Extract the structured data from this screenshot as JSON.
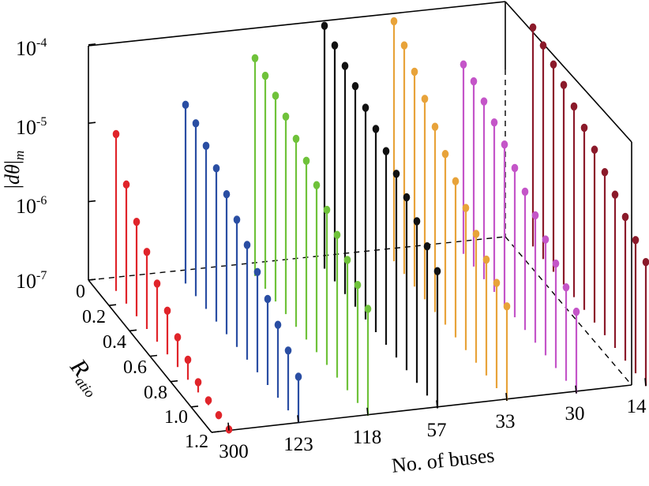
{
  "chart_data": {
    "type": "3d-stem",
    "ylabel": "|dθ|m",
    "ylabel_parts": {
      "open": "|",
      "d": "d",
      "theta": "θ",
      "close": "|",
      "sub": "m"
    },
    "xlabel": "No. of buses",
    "rlabel": "R",
    "rlabel_sub": "atio",
    "z_scale": "log",
    "z_range": [
      1e-07,
      0.0001
    ],
    "z_ticks": [
      {
        "base": "10",
        "exp": "-4",
        "value": 0.0001
      },
      {
        "base": "10",
        "exp": "-5",
        "value": 1e-05
      },
      {
        "base": "10",
        "exp": "-6",
        "value": 1e-06
      },
      {
        "base": "10",
        "exp": "-7",
        "value": 1e-07
      }
    ],
    "r_range": [
      0,
      1.2
    ],
    "r_ticks": [
      "0",
      "0.2",
      "0.4",
      "0.6",
      "0.8",
      "1.0",
      "1.2"
    ],
    "r_values": [
      0.1,
      0.2,
      0.3,
      0.4,
      0.5,
      0.6,
      0.7,
      0.8,
      0.9,
      1.0,
      1.1,
      1.2
    ],
    "series": [
      {
        "name": "300",
        "color": "#e0242a",
        "values": [
          1e-05,
          3.3e-06,
          1.6e-06,
          9.6e-07,
          5.5e-07,
          3.6e-07,
          2.4e-07,
          1.8e-07,
          1.35e-07,
          1.15e-07,
          1.08e-07,
          1.03e-07
        ]
      },
      {
        "name": "123",
        "color": "#2a4ea3",
        "values": [
          1.9e-05,
          1.6e-05,
          1.2e-05,
          9e-06,
          6.1e-06,
          4.2e-06,
          2.9e-06,
          1.9e-06,
          1.25e-06,
          8.5e-07,
          5.8e-07,
          3.9e-07
        ]
      },
      {
        "name": "118",
        "color": "#6fc23a",
        "values": [
          6e-05,
          5.2e-05,
          4.2e-05,
          3.3e-05,
          2.5e-05,
          1.9e-05,
          1.35e-05,
          9.5e-06,
          6.6e-06,
          4.6e-06,
          3.2e-06,
          2.3e-06
        ]
      },
      {
        "name": "57",
        "color": "#111111",
        "values": [
          0.000125,
          0.000102,
          8.1e-05,
          6.5e-05,
          5e-05,
          3.9e-05,
          2.95e-05,
          2.2e-05,
          1.6e-05,
          1.15e-05,
          8e-06,
          5.6e-06
        ]
      },
      {
        "name": "33",
        "color": "#e8a33a",
        "values": [
          0.000115,
          8.2e-05,
          5.5e-05,
          3.6e-05,
          2.3e-05,
          1.5e-05,
          9.8e-06,
          6.5e-06,
          4.4e-06,
          3e-06,
          2.2e-06,
          1.6e-06
        ]
      },
      {
        "name": "30",
        "color": "#c455c8",
        "values": [
          2.6e-05,
          2.3e-05,
          1.85e-05,
          1.45e-05,
          1.1e-05,
          8e-06,
          5.8e-06,
          4.2e-06,
          3e-06,
          2.15e-06,
          1.55e-06,
          1.1e-06
        ]
      },
      {
        "name": "14",
        "color": "#8b1a2a",
        "values": [
          6.2e-05,
          5.3e-05,
          4.4e-05,
          3.5e-05,
          2.7e-05,
          2.1e-05,
          1.6e-05,
          1.2e-05,
          9e-06,
          6.8e-06,
          5e-06,
          3.8e-06
        ]
      }
    ]
  }
}
